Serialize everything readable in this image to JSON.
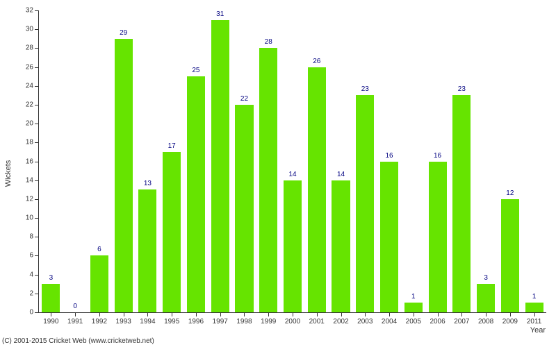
{
  "chart": {
    "type": "bar",
    "ylabel": "Wickets",
    "xlabel": "Year",
    "ylim": [
      0,
      32
    ],
    "ytick_step": 2,
    "bar_color": "#66e400",
    "label_color": "#000080",
    "axis_color": "#333333",
    "background_color": "#ffffff",
    "label_fontsize": 10,
    "axis_fontsize": 11,
    "bar_width_ratio": 0.75,
    "categories": [
      "1990",
      "1991",
      "1992",
      "1993",
      "1994",
      "1995",
      "1996",
      "1997",
      "1998",
      "1999",
      "2000",
      "2001",
      "2002",
      "2003",
      "2004",
      "2005",
      "2006",
      "2007",
      "2008",
      "2009",
      "2011"
    ],
    "values": [
      3,
      0,
      6,
      29,
      13,
      17,
      25,
      31,
      22,
      28,
      14,
      26,
      14,
      23,
      16,
      1,
      16,
      23,
      3,
      12,
      1
    ]
  },
  "copyright": "(C) 2001-2015 Cricket Web (www.cricketweb.net)"
}
